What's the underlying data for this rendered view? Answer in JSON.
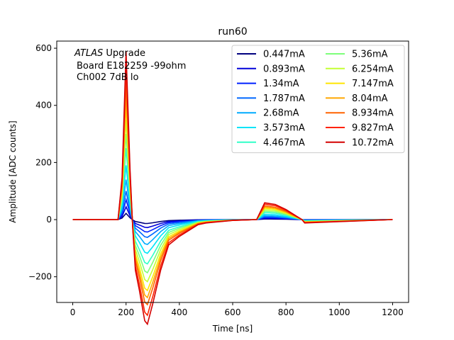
{
  "chart_data": {
    "type": "line",
    "title": "run60",
    "xlabel": "Time [ns]",
    "ylabel": "Amplitude [ADC counts]",
    "xlim": [
      -60,
      1260
    ],
    "ylim": [
      -290,
      625
    ],
    "xticks": [
      0,
      200,
      400,
      600,
      800,
      1000,
      1200
    ],
    "yticks": [
      -200,
      0,
      200,
      400,
      600
    ],
    "grid": false,
    "legend_placement": "top-right",
    "legend_columns": 2,
    "annotation": {
      "line1_italic": "ATLAS",
      "line1_rest": " Upgrade",
      "line2": "Board E182259 -99ohm",
      "line3": "Ch002 7dB lo"
    },
    "pulse_shape_points": {
      "x": [
        0,
        170,
        185,
        200,
        215,
        225,
        235,
        250,
        270,
        280,
        300,
        330,
        360,
        400,
        470,
        500,
        600,
        690,
        720,
        760,
        800,
        840,
        860,
        870,
        1200
      ],
      "y_normalized_to_peak": [
        0,
        0,
        0.25,
        1.0,
        0.3,
        -0.05,
        -0.3,
        -0.42,
        -0.6,
        -0.62,
        -0.5,
        -0.3,
        -0.15,
        -0.1,
        -0.03,
        -0.02,
        -0.005,
        0.0,
        0.1,
        0.09,
        0.06,
        0.02,
        0.0,
        -0.02,
        0
      ]
    },
    "series": [
      {
        "name": "0.447mA",
        "color": "#00007f",
        "peak": 22
      },
      {
        "name": "0.893mA",
        "color": "#0000d9",
        "peak": 45
      },
      {
        "name": "1.34mA",
        "color": "#0020ff",
        "peak": 70
      },
      {
        "name": "1.787mA",
        "color": "#0068ff",
        "peak": 100
      },
      {
        "name": "2.68mA",
        "color": "#00acff",
        "peak": 140
      },
      {
        "name": "3.573mA",
        "color": "#00e4f8",
        "peak": 190
      },
      {
        "name": "4.467mA",
        "color": "#30ffc7",
        "peak": 250
      },
      {
        "name": "5.36mA",
        "color": "#7dff7a",
        "peak": 300
      },
      {
        "name": "6.254mA",
        "color": "#c4ff33",
        "peak": 350
      },
      {
        "name": "7.147mA",
        "color": "#ffe500",
        "peak": 400
      },
      {
        "name": "8.04mA",
        "color": "#ffa700",
        "peak": 440
      },
      {
        "name": "8.934mA",
        "color": "#ff6300",
        "peak": 480
      },
      {
        "name": "9.827mA",
        "color": "#ff2200",
        "peak": 540
      },
      {
        "name": "10.72mA",
        "color": "#d40000",
        "peak": 590
      }
    ]
  }
}
